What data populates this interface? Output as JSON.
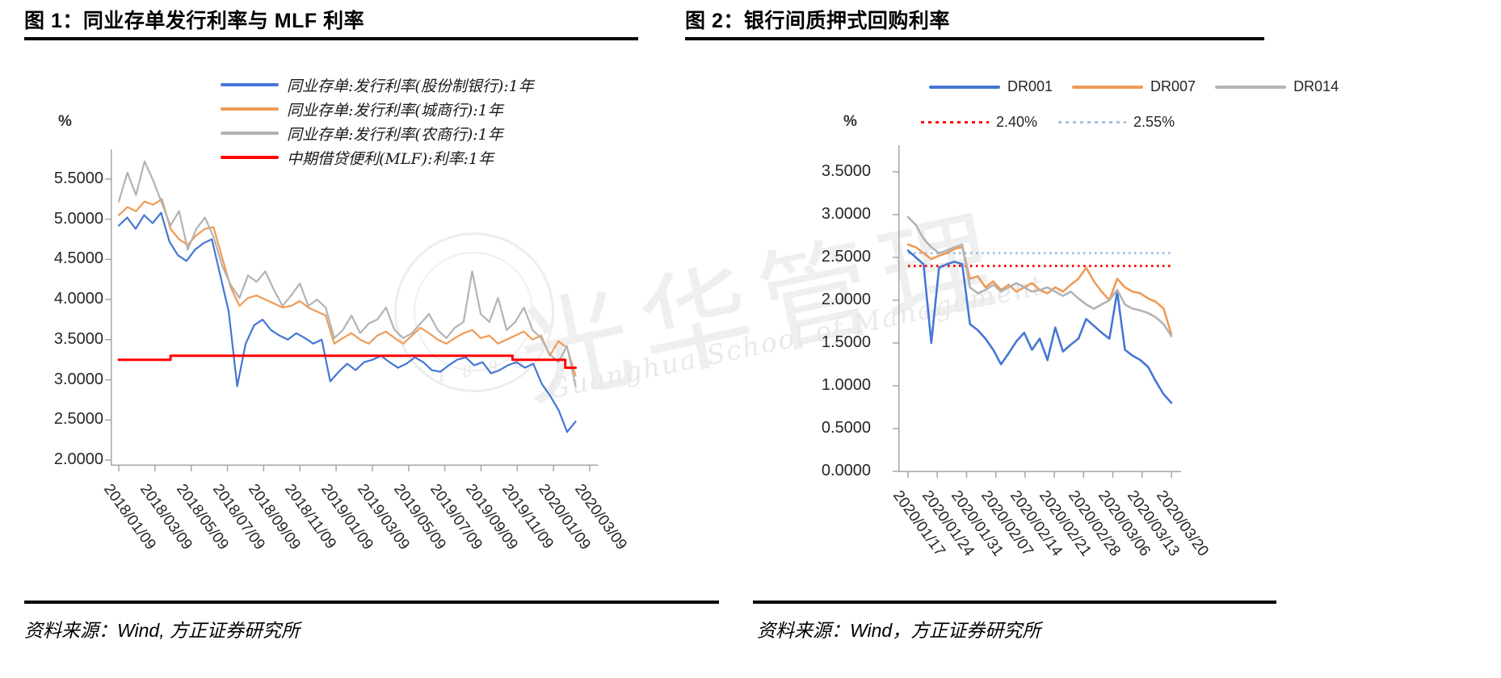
{
  "figures": [
    {
      "title": "图 1：同业存单发行利率与 MLF 利率",
      "source": "资料来源：Wind, 方正证券研究所",
      "chart_data": {
        "type": "line",
        "title": "同业存单发行利率与MLF利率",
        "ylabel": "%",
        "ylim": [
          1.93,
          5.87
        ],
        "grid": false,
        "legend_position": "top",
        "yticks": [
          5.5,
          5.0,
          4.5,
          4.0,
          3.5,
          3.0,
          2.5,
          2.0
        ],
        "xticklabels": [
          "2018/01/09",
          "2018/03/09",
          "2018/05/09",
          "2018/07/09",
          "2018/09/09",
          "2018/11/09",
          "2019/01/09",
          "2019/03/09",
          "2019/05/09",
          "2019/07/09",
          "2019/09/09",
          "2019/11/09",
          "2020/01/09",
          "2020/03/09"
        ],
        "series": [
          {
            "name": "同业存单:发行利率(股份制银行):1年",
            "color": "#4577d4",
            "width": 2.2,
            "xend": 0.97,
            "values": [
              4.92,
              5.02,
              4.88,
              5.05,
              4.95,
              5.08,
              4.72,
              4.55,
              4.48,
              4.62,
              4.7,
              4.75,
              4.3,
              3.85,
              2.92,
              3.45,
              3.68,
              3.75,
              3.62,
              3.55,
              3.5,
              3.58,
              3.52,
              3.45,
              3.5,
              2.98,
              3.1,
              3.2,
              3.12,
              3.22,
              3.25,
              3.3,
              3.22,
              3.15,
              3.2,
              3.28,
              3.22,
              3.12,
              3.1,
              3.18,
              3.25,
              3.28,
              3.18,
              3.22,
              3.08,
              3.12,
              3.18,
              3.22,
              3.15,
              3.2,
              2.95,
              2.8,
              2.62,
              2.35,
              2.48
            ]
          },
          {
            "name": "同业存单:发行利率(城商行):1年",
            "color": "#ef9b57",
            "width": 2.2,
            "xend": 0.97,
            "values": [
              5.05,
              5.15,
              5.1,
              5.22,
              5.18,
              5.25,
              4.88,
              4.75,
              4.68,
              4.8,
              4.88,
              4.9,
              4.52,
              4.15,
              3.92,
              4.02,
              4.05,
              4.0,
              3.95,
              3.9,
              3.92,
              3.98,
              3.9,
              3.85,
              3.8,
              3.45,
              3.52,
              3.58,
              3.5,
              3.45,
              3.55,
              3.6,
              3.52,
              3.45,
              3.55,
              3.65,
              3.58,
              3.5,
              3.45,
              3.52,
              3.58,
              3.62,
              3.52,
              3.55,
              3.45,
              3.5,
              3.55,
              3.6,
              3.5,
              3.55,
              3.3,
              3.48,
              3.4,
              3.05
            ]
          },
          {
            "name": "同业存单:发行利率(农商行):1年",
            "color": "#b3b3b3",
            "width": 2.2,
            "xend": 0.97,
            "values": [
              5.22,
              5.58,
              5.3,
              5.72,
              5.48,
              5.2,
              4.92,
              5.1,
              4.62,
              4.88,
              5.02,
              4.78,
              4.42,
              4.18,
              4.02,
              4.3,
              4.22,
              4.35,
              4.12,
              3.92,
              4.05,
              4.2,
              3.92,
              4.0,
              3.9,
              3.52,
              3.62,
              3.8,
              3.58,
              3.7,
              3.75,
              3.9,
              3.62,
              3.52,
              3.58,
              3.7,
              3.82,
              3.62,
              3.52,
              3.65,
              3.72,
              4.35,
              3.82,
              3.72,
              4.02,
              3.62,
              3.72,
              3.9,
              3.62,
              3.52,
              3.32,
              3.22,
              3.42,
              2.92
            ]
          },
          {
            "name": "中期借贷便利(MLF):利率:1年",
            "color": "#ff0000",
            "width": 3,
            "xy": [
              [
                0,
                3.25
              ],
              [
                0.11,
                3.25
              ],
              [
                0.11,
                3.3
              ],
              [
                0.836,
                3.3
              ],
              [
                0.836,
                3.25
              ],
              [
                0.948,
                3.25
              ],
              [
                0.948,
                3.15
              ],
              [
                0.97,
                3.15
              ]
            ]
          }
        ]
      }
    },
    {
      "title": "图 2：银行间质押式回购利率",
      "source": "资料来源：Wind，方正证券研究所",
      "chart_data": {
        "type": "line",
        "title": "银行间质押式回购利率",
        "ylabel": "%",
        "ylim": [
          -0.01,
          3.81
        ],
        "grid": false,
        "legend_position": "top",
        "yticks": [
          3.5,
          3.0,
          2.5,
          2.0,
          1.5,
          1.0,
          0.5,
          0.0
        ],
        "xticklabels": [
          "2020/01/17",
          "2020/01/24",
          "2020/01/31",
          "2020/02/07",
          "2020/02/14",
          "2020/02/21",
          "2020/02/28",
          "2020/03/06",
          "2020/03/13",
          "2020/03/20"
        ],
        "series": [
          {
            "name": "DR001",
            "color": "#4577d4",
            "width": 2.6,
            "xend": 1,
            "values": [
              2.58,
              2.5,
              2.42,
              1.5,
              2.38,
              2.42,
              2.45,
              2.42,
              1.72,
              1.65,
              1.55,
              1.42,
              1.25,
              1.38,
              1.52,
              1.62,
              1.42,
              1.55,
              1.3,
              1.68,
              1.4,
              1.48,
              1.55,
              1.78,
              1.7,
              1.62,
              1.55,
              2.1,
              1.42,
              1.35,
              1.3,
              1.22,
              1.05,
              0.9,
              0.8
            ]
          },
          {
            "name": "DR007",
            "color": "#ef9b57",
            "width": 2.6,
            "xend": 1,
            "values": [
              2.65,
              2.62,
              2.55,
              2.48,
              2.52,
              2.55,
              2.6,
              2.62,
              2.25,
              2.28,
              2.15,
              2.22,
              2.12,
              2.18,
              2.1,
              2.15,
              2.2,
              2.12,
              2.08,
              2.15,
              2.1,
              2.18,
              2.25,
              2.38,
              2.22,
              2.1,
              2.0,
              2.25,
              2.15,
              2.1,
              2.08,
              2.02,
              1.98,
              1.9,
              1.6
            ]
          },
          {
            "name": "DR014",
            "color": "#b3b3b3",
            "width": 2.6,
            "xend": 1,
            "values": [
              2.97,
              2.88,
              2.72,
              2.62,
              2.55,
              2.58,
              2.62,
              2.65,
              2.15,
              2.08,
              2.12,
              2.18,
              2.1,
              2.15,
              2.2,
              2.15,
              2.1,
              2.12,
              2.15,
              2.1,
              2.05,
              2.1,
              2.02,
              1.95,
              1.9,
              1.95,
              2.0,
              2.12,
              1.95,
              1.9,
              1.88,
              1.85,
              1.8,
              1.72,
              1.58
            ]
          }
        ],
        "ref_lines": [
          {
            "label": "2.40%",
            "value": 2.4,
            "color": "#ff0000"
          },
          {
            "label": "2.55%",
            "value": 2.55,
            "color": "#9dc3e6"
          }
        ]
      }
    }
  ],
  "watermark": {
    "cn": "光华管理",
    "en": "Guanghua School of Management",
    "year": "1 8 9 8"
  }
}
